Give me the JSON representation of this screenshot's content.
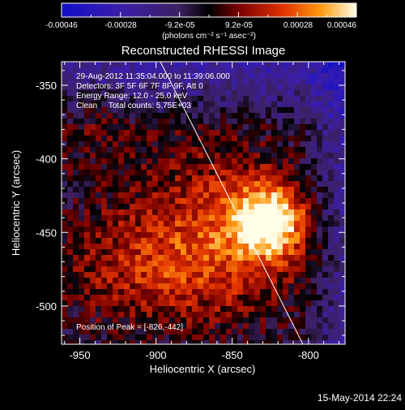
{
  "colorbar": {
    "tick_labels": [
      "-0.00046",
      "-0.00028",
      "-9.2e-05",
      "9.2e-05",
      "0.00028",
      "0.00046"
    ],
    "units": "(photons cm⁻² s⁻¹ asec⁻²)"
  },
  "image": {
    "title": "Reconstructed RHESSI Image",
    "info_lines": [
      "29-Aug-2012 11:35:04.000 to 11:39:06.000",
      "Detectors: 3F 5F 6F 7F 8F 9F, Att 0",
      "Energy Range: 12.0 - 25.0 keV",
      "Clean     Total counts: 5.75E+03"
    ],
    "peak_label": "Position of Peak = [-826,-442]",
    "peak": {
      "x": -826,
      "y": -442
    }
  },
  "axes": {
    "xlabel": "Heliocentric X (arcsec)",
    "ylabel": "Heliocentric Y (arcsec)",
    "x_ticks": [
      "-950",
      "-900",
      "-850",
      "-800"
    ],
    "x_tick_values": [
      -950,
      -900,
      -850,
      -800
    ],
    "y_ticks": [
      "-350",
      "-400",
      "-450",
      "-500"
    ],
    "y_tick_values": [
      -350,
      -400,
      -450,
      -500
    ],
    "xlim": [
      -962,
      -776
    ],
    "ylim": [
      -526,
      -334
    ]
  },
  "footer": {
    "timestamp": "15-May-2014 22:24"
  },
  "colors": {
    "background": "#000000",
    "foreground": "#ffffff"
  }
}
